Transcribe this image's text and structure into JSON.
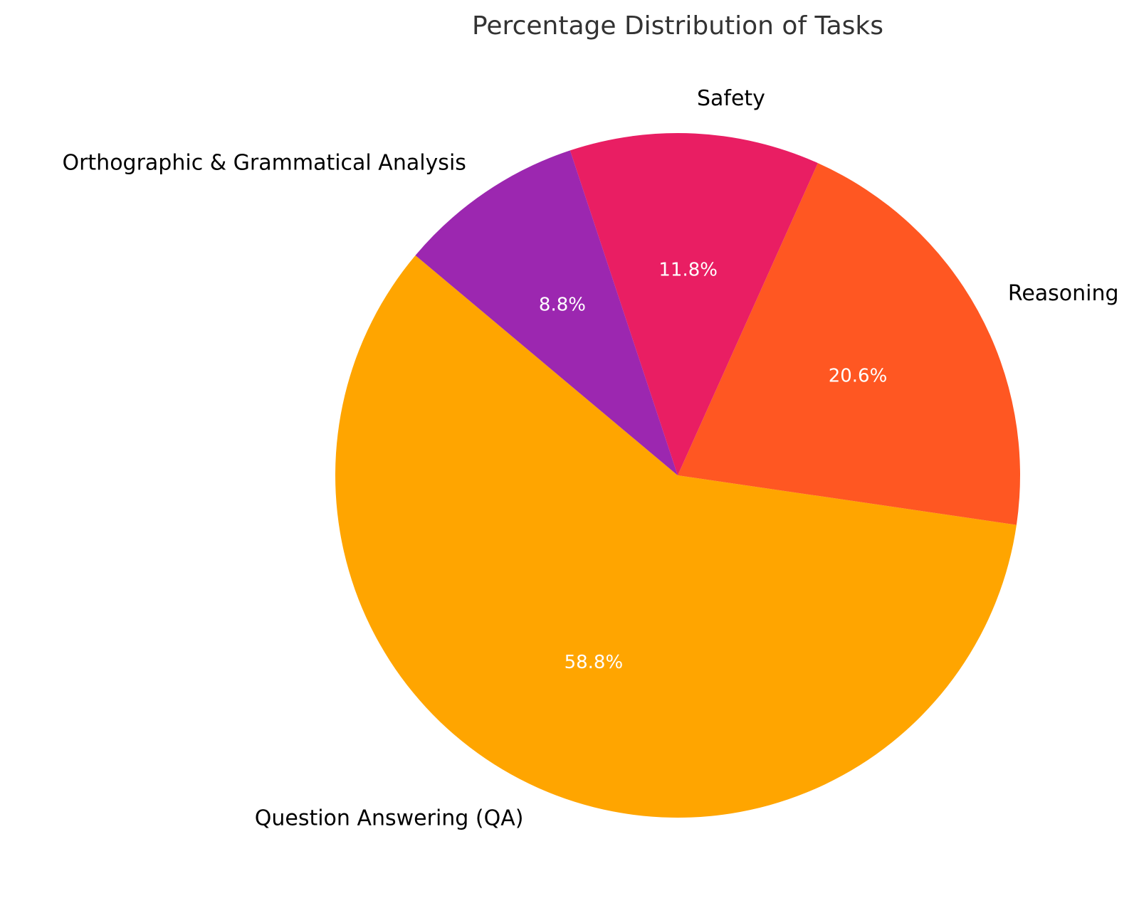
{
  "chart_data": {
    "type": "pie",
    "title": "Percentage Distribution of Tasks",
    "categories": [
      "Question Answering (QA)",
      "Reasoning",
      "Safety",
      "Orthographic & Grammatical Analysis"
    ],
    "values": [
      58.8,
      20.6,
      11.8,
      8.8
    ],
    "pct_labels": [
      "58.8%",
      "20.6%",
      "11.8%",
      "8.8%"
    ],
    "colors": [
      "#FFA500",
      "#FF5722",
      "#E91E63",
      "#9C27B0"
    ],
    "start_angle_deg": 140,
    "direction": "counterclockwise"
  }
}
